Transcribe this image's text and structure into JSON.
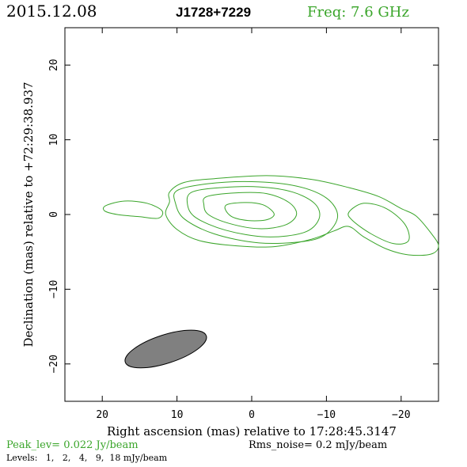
{
  "header": {
    "date": "2015.12.08",
    "source": "J1728+7229",
    "freq": "Freq: 7.6 GHz"
  },
  "footer": {
    "peak": "Peak_lev=  0.022 Jy/beam",
    "rms": "Rms_noise=  0.2 mJy/beam",
    "levels": "Levels:   1,   2,   4,   9,  18 mJy/beam"
  },
  "colors": {
    "contour": "#3aa52a",
    "beam": "#808080",
    "axes": "#000000"
  },
  "chart_data": {
    "type": "contour",
    "title": "J1728+7229",
    "xlabel": "Right ascension (mas) relative to 17:28:45.3147",
    "ylabel": "Declination (mas) relative to +72:29:38.937",
    "xlim": [
      25,
      -25
    ],
    "ylim": [
      -25,
      25
    ],
    "x_ticks": [
      20,
      10,
      0,
      -10,
      -20
    ],
    "x_tick_labels": [
      "20",
      "10",
      "0",
      "−10",
      "−20"
    ],
    "y_ticks": [
      20,
      10,
      0,
      -10,
      -20
    ],
    "y_tick_labels": [
      "20",
      "10",
      "0",
      "−10",
      "−20"
    ],
    "levels_mJy_per_beam": [
      1,
      2,
      4,
      9,
      18
    ],
    "peak_Jy_per_beam": 0.022,
    "rms_mJy_per_beam": 0.2,
    "contours": [
      {
        "level": 1,
        "points": [
          [
            11,
            3
          ],
          [
            9,
            4.3
          ],
          [
            5,
            4.8
          ],
          [
            -2,
            5.2
          ],
          [
            -8,
            4.7
          ],
          [
            -13,
            3.6
          ],
          [
            -17,
            2.4
          ],
          [
            -20,
            0.8
          ],
          [
            -22,
            -0.2
          ],
          [
            -24,
            -2.5
          ],
          [
            -25,
            -4.2
          ],
          [
            -24,
            -5.3
          ],
          [
            -21,
            -5.4
          ],
          [
            -18,
            -4.6
          ],
          [
            -15,
            -3
          ],
          [
            -13,
            -1.6
          ],
          [
            -11,
            -2.2
          ],
          [
            -8,
            -3.3
          ],
          [
            -3,
            -4.3
          ],
          [
            2,
            -4.2
          ],
          [
            7,
            -3.5
          ],
          [
            10,
            -2
          ],
          [
            11.5,
            0
          ],
          [
            11,
            1.7
          ]
        ]
      },
      {
        "level": 1,
        "points": [
          [
            -13,
            0.3
          ],
          [
            -15,
            1.5
          ],
          [
            -18,
            0.8
          ],
          [
            -20.5,
            -1.3
          ],
          [
            -21,
            -3.5
          ],
          [
            -19,
            -3.9
          ],
          [
            -16,
            -2.6
          ],
          [
            -13.5,
            -0.8
          ]
        ]
      },
      {
        "level": 1,
        "points": [
          [
            19.5,
            1.2
          ],
          [
            17,
            1.8
          ],
          [
            14,
            1.5
          ],
          [
            12,
            0.5
          ],
          [
            12.5,
            -0.5
          ],
          [
            15,
            -0.3
          ],
          [
            18,
            0
          ],
          [
            19.7,
            0.5
          ]
        ]
      },
      {
        "level": 2,
        "points": [
          [
            10,
            3.2
          ],
          [
            6,
            4.1
          ],
          [
            0,
            4.4
          ],
          [
            -6,
            3.8
          ],
          [
            -10,
            2.2
          ],
          [
            -11.5,
            -0.2
          ],
          [
            -10,
            -2.6
          ],
          [
            -7,
            -3.6
          ],
          [
            -1,
            -3.8
          ],
          [
            5,
            -2.6
          ],
          [
            9,
            -0.6
          ],
          [
            10.2,
            1.5
          ]
        ]
      },
      {
        "level": 4,
        "points": [
          [
            8,
            3
          ],
          [
            4,
            3.6
          ],
          [
            -1,
            3.7
          ],
          [
            -5.5,
            3
          ],
          [
            -8.5,
            1.4
          ],
          [
            -9,
            -0.6
          ],
          [
            -7,
            -2.4
          ],
          [
            -2,
            -3
          ],
          [
            3.5,
            -2.1
          ],
          [
            7.5,
            -0.4
          ],
          [
            8.6,
            1.4
          ]
        ]
      },
      {
        "level": 9,
        "points": [
          [
            6,
            2.4
          ],
          [
            2,
            2.9
          ],
          [
            -2,
            2.8
          ],
          [
            -5,
            1.6
          ],
          [
            -6,
            0
          ],
          [
            -4.5,
            -1.4
          ],
          [
            -1,
            -1.9
          ],
          [
            3,
            -1.2
          ],
          [
            5.8,
            0
          ],
          [
            6.4,
            1.3
          ]
        ]
      },
      {
        "level": 18,
        "points": [
          [
            3.5,
            1.2
          ],
          [
            1,
            1.6
          ],
          [
            -1.5,
            1.3
          ],
          [
            -3,
            0.1
          ],
          [
            -2,
            -0.7
          ],
          [
            0.5,
            -0.8
          ],
          [
            2.8,
            -0.2
          ]
        ]
      }
    ],
    "beam": {
      "x": 11.5,
      "y": -18,
      "major": 11.4,
      "minor": 3.8,
      "pa_deg": 72
    }
  }
}
